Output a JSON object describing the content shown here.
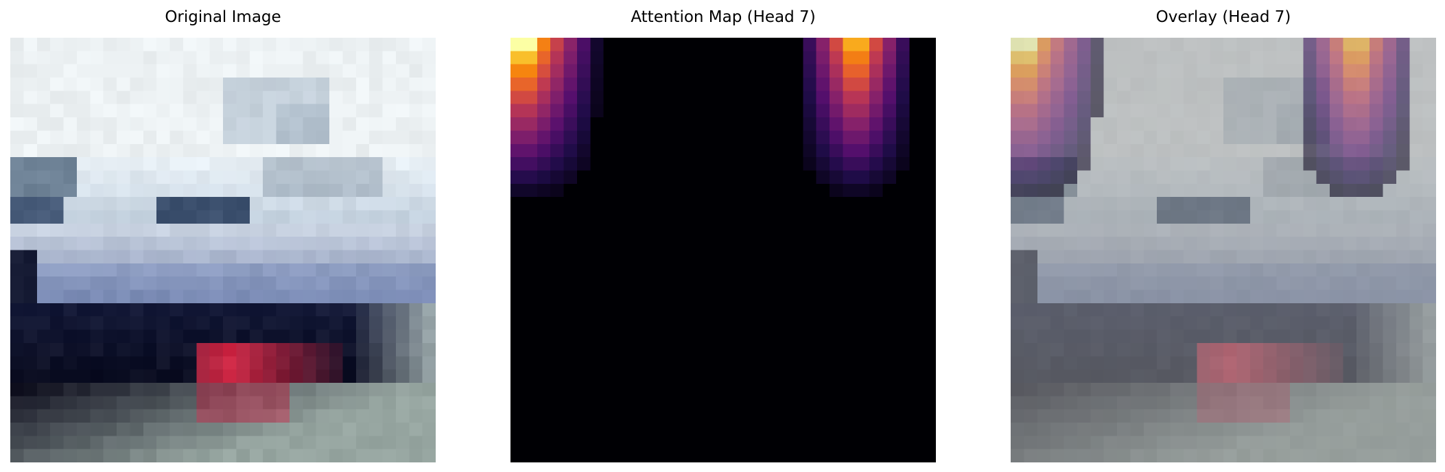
{
  "figure": {
    "panels": [
      {
        "id": "original",
        "title": "Original Image",
        "content": "blurred low-resolution photo of a white boat with dark blue hull and red bow marking"
      },
      {
        "id": "attention",
        "title": "Attention Map (Head 7)",
        "colormap": "inferno",
        "content": "two vertical hot bands near top-left and top-right corners on black"
      },
      {
        "id": "overlay",
        "title": "Overlay (Head 7)",
        "content": "original image blended with attention heatmap"
      }
    ]
  }
}
